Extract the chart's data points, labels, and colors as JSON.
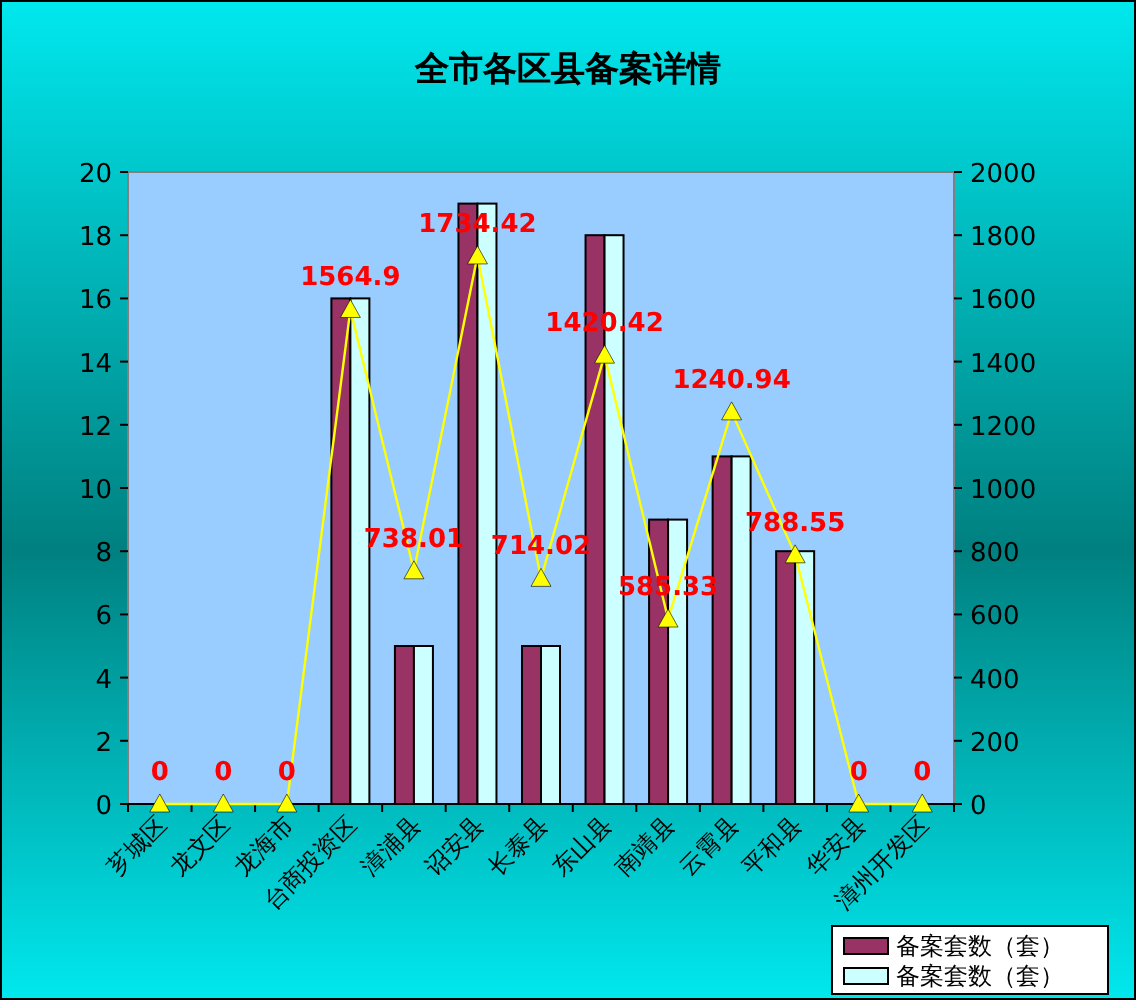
{
  "chart_data": {
    "type": "bar",
    "title": "全市各区县备案详情",
    "categories": [
      "芗城区",
      "龙文区",
      "龙海市",
      "台商投资区",
      "漳浦县",
      "诏安县",
      "长泰县",
      "东山县",
      "南靖县",
      "云霄县",
      "平和县",
      "华安县",
      "漳州开发区"
    ],
    "series": [
      {
        "name": "备案套数（套）",
        "color": "#993366",
        "values": [
          0,
          0,
          0,
          16,
          5,
          19,
          5,
          18,
          9,
          11,
          8,
          0,
          0
        ]
      },
      {
        "name": "备案套数（套）",
        "color": "#ccffff",
        "values": [
          0,
          0,
          0,
          16,
          5,
          19,
          5,
          18,
          9,
          11,
          8,
          0,
          0
        ]
      },
      {
        "type": "line",
        "axis": "y2",
        "color": "#ffff00",
        "marker": "triangle",
        "data_labels": true,
        "values": [
          0,
          0,
          0,
          1564.9,
          738.01,
          1734.42,
          714.02,
          1420.42,
          585.33,
          1240.94,
          788.55,
          0,
          0
        ]
      }
    ],
    "ylim": [
      0,
      20
    ],
    "yticks": [
      0,
      2,
      4,
      6,
      8,
      10,
      12,
      14,
      16,
      18,
      20
    ],
    "y2lim": [
      0,
      2000
    ],
    "y2ticks": [
      0,
      200,
      400,
      600,
      800,
      1000,
      1200,
      1400,
      1600,
      1800,
      2000
    ],
    "grid": false,
    "legend": "bottom right"
  }
}
